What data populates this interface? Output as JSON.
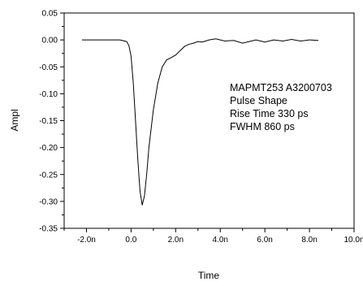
{
  "chart_data": {
    "type": "line",
    "xlabel": "Time",
    "ylabel": "Ampl",
    "xlim": [
      -3.0,
      10.0
    ],
    "ylim": [
      -0.35,
      0.05
    ],
    "grid": false,
    "x_ticks": [
      -2,
      0,
      2,
      4,
      6,
      8,
      10
    ],
    "x_tick_labels": [
      "-2.0n",
      "0.0",
      "2.0n",
      "4.0n",
      "6.0n",
      "8.0n",
      "10.0n"
    ],
    "y_ticks": [
      0.05,
      0.0,
      -0.05,
      -0.1,
      -0.15,
      -0.2,
      -0.25,
      -0.3,
      -0.35
    ],
    "y_tick_labels": [
      "0.05",
      "0.00",
      "-0.05",
      "-0.10",
      "-0.15",
      "-0.20",
      "-0.25",
      "-0.30",
      "-0.35"
    ],
    "annotations": [
      "MAPMT253 A3200703",
      "Pulse Shape",
      "Rise Time 330 ps",
      "FWHM 860 ps"
    ],
    "series": [
      {
        "x": [
          -2.2,
          -1.5,
          -1.0,
          -0.5,
          -0.2,
          -0.1,
          0.0,
          0.1,
          0.2,
          0.3,
          0.4,
          0.5,
          0.6,
          0.7,
          0.8,
          1.0,
          1.2,
          1.4,
          1.6,
          1.8,
          2.0,
          2.2,
          2.4,
          2.6,
          2.8,
          3.0,
          3.2,
          3.5,
          3.8,
          4.2,
          4.6,
          5.0,
          5.3,
          5.6,
          6.0,
          6.4,
          6.8,
          7.2,
          7.6,
          8.0,
          8.4
        ],
        "y": [
          0.0,
          0.0,
          0.0,
          0.0,
          -0.003,
          -0.01,
          -0.03,
          -0.08,
          -0.15,
          -0.22,
          -0.28,
          -0.307,
          -0.29,
          -0.25,
          -0.2,
          -0.13,
          -0.08,
          -0.05,
          -0.037,
          -0.033,
          -0.028,
          -0.02,
          -0.012,
          -0.008,
          -0.006,
          -0.003,
          -0.004,
          0.0,
          0.002,
          -0.002,
          -0.001,
          -0.006,
          -0.003,
          0.0,
          -0.004,
          0.0,
          -0.002,
          0.001,
          -0.002,
          0.0,
          -0.001
        ]
      }
    ]
  }
}
